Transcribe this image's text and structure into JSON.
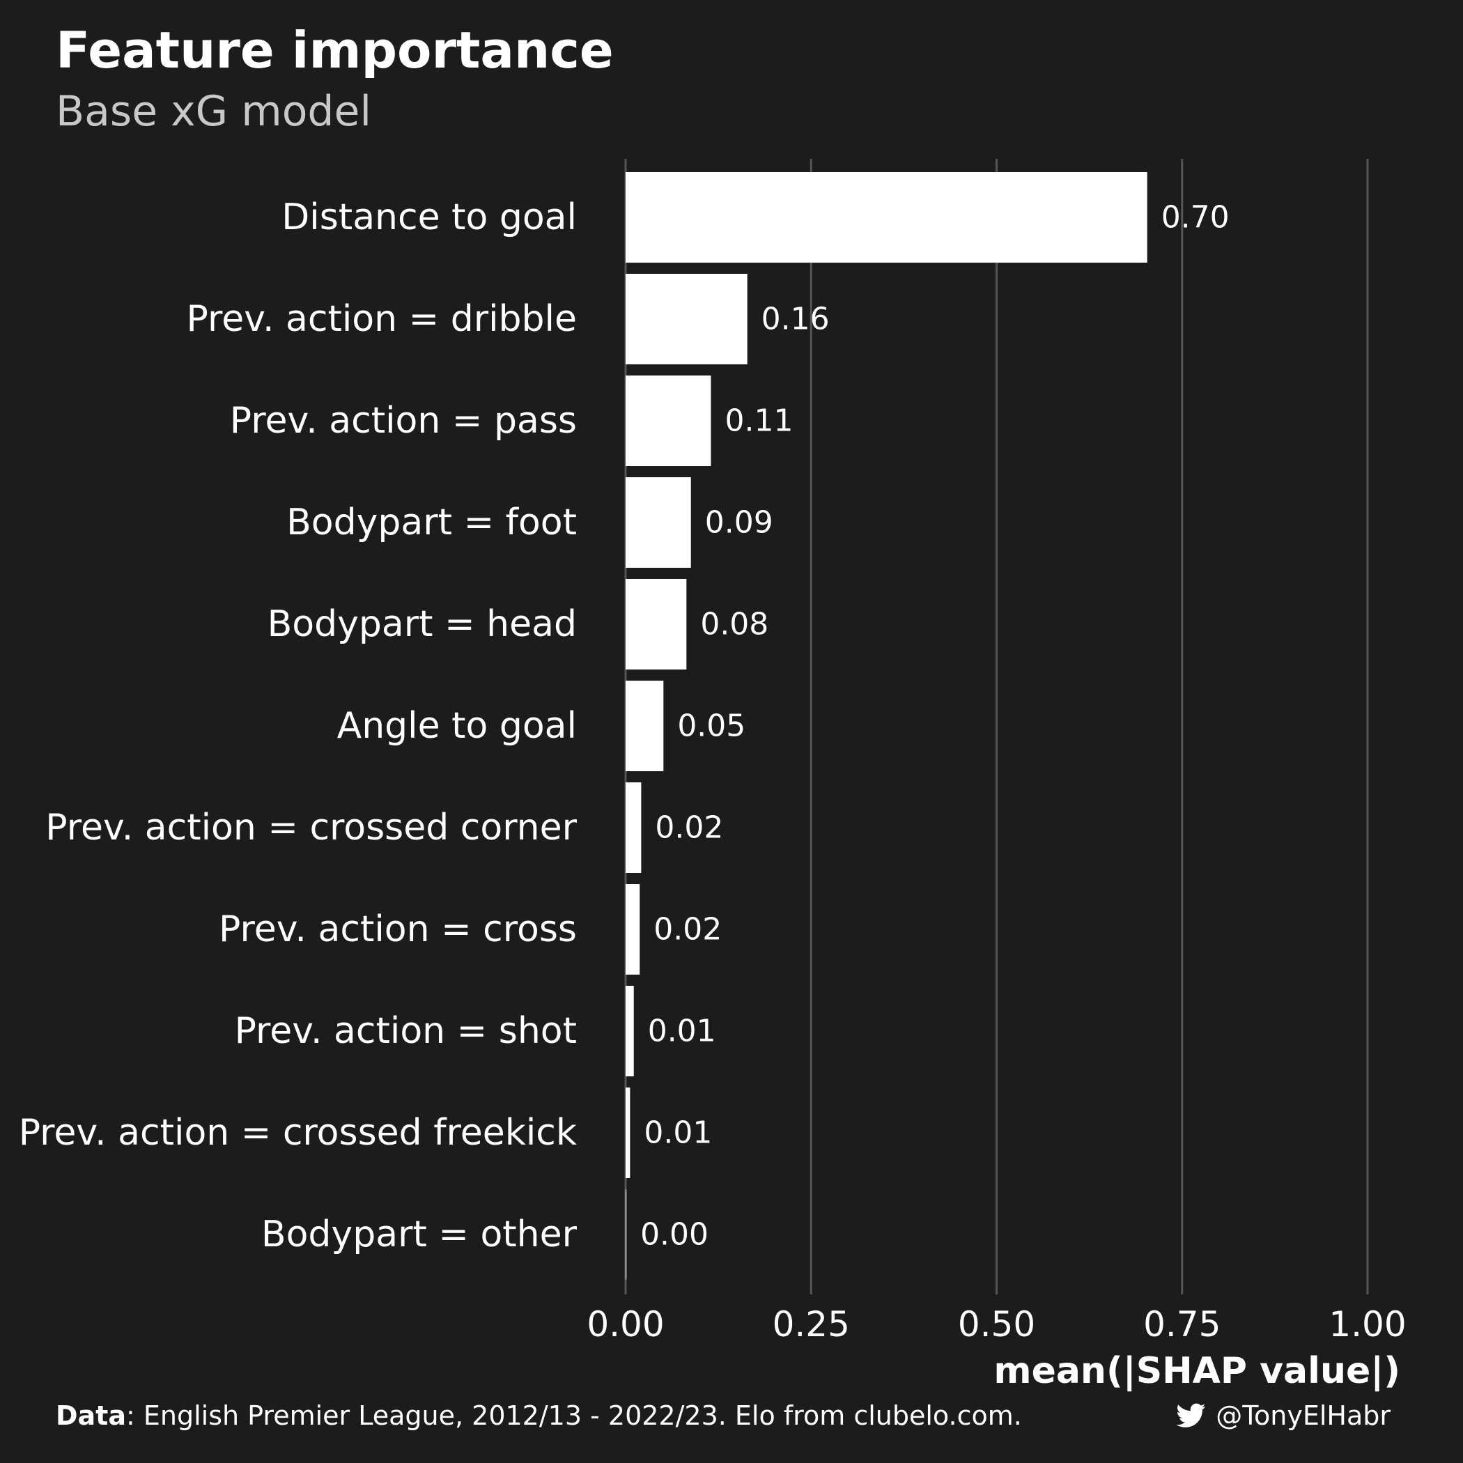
{
  "chart_data": {
    "type": "bar",
    "orientation": "horizontal",
    "title": "Feature importance",
    "subtitle": "Base xG model",
    "xlabel": "mean(|SHAP value|)",
    "ylabel": "",
    "xlim": [
      0,
      1.0
    ],
    "x_ticks": [
      "0.00",
      "0.25",
      "0.50",
      "0.75",
      "1.00"
    ],
    "x_tick_values": [
      0,
      0.25,
      0.5,
      0.75,
      1.0
    ],
    "grid": "vertical major lines",
    "categories": [
      "Distance to goal",
      "Prev. action = dribble",
      "Prev. action = pass",
      "Bodypart = foot",
      "Bodypart = head",
      "Angle to goal",
      "Prev. action = crossed corner",
      "Prev. action = cross",
      "Prev. action = shot",
      "Prev. action = crossed freekick",
      "Bodypart = other"
    ],
    "values": [
      0.703,
      0.164,
      0.115,
      0.088,
      0.082,
      0.051,
      0.021,
      0.019,
      0.011,
      0.006,
      0.001
    ],
    "value_labels": [
      "0.70",
      "0.16",
      "0.11",
      "0.09",
      "0.08",
      "0.05",
      "0.02",
      "0.02",
      "0.01",
      "0.01",
      "0.00"
    ],
    "bar_color": "#ffffff",
    "background": "#1c1c1c",
    "grid_color": "#555555"
  },
  "caption": {
    "data_label": "Data",
    "text": ": English Premier League, 2012/13 - 2022/23. Elo from clubelo.com."
  },
  "handle": {
    "icon": "twitter-icon",
    "text": "@TonyElHabr"
  }
}
